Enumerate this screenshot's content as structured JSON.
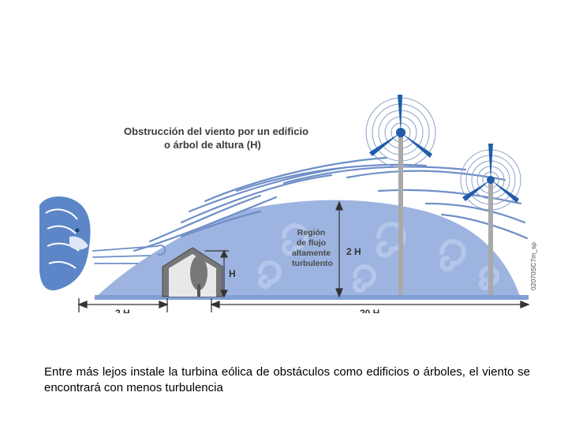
{
  "diagram": {
    "title_lines": [
      "Obstrucción del viento por un edificio",
      "o árbol de altura (H)"
    ],
    "region_label_lines": [
      "Región",
      "de flujo",
      "altamente",
      "turbulento"
    ],
    "dim_2h_vertical": "2 H",
    "dim_h_vertical": "H",
    "dim_2h_horizontal": "2 H",
    "dim_20h_horizontal": "20 H",
    "image_code": "02070SC7m_sp",
    "colors": {
      "turbulence_zone": "#9db4e0",
      "wind_lines": "#6f8fc8",
      "ground": "#7f9fd8",
      "turbine_blades": "#1f5da8",
      "tower": "#a9a9a9",
      "building": "#777777"
    }
  },
  "caption": "Entre más lejos instale la turbina eólica de obstáculos como edificios o árboles, el viento se encontrará con menos turbulencia"
}
